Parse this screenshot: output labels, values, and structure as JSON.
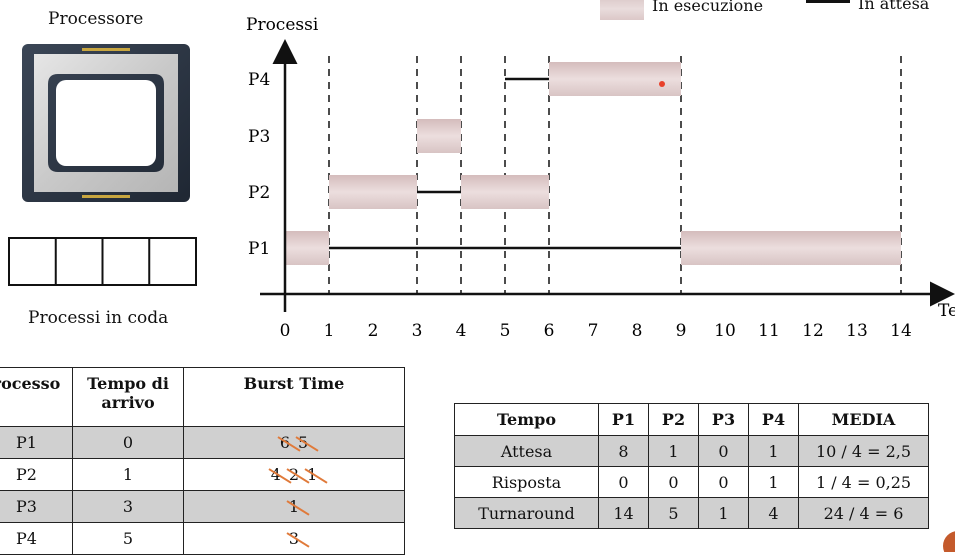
{
  "cpu": {
    "title": "Processore",
    "queue_caption": "Processi in coda",
    "queue_slots": 4
  },
  "legend": {
    "running": "In esecuzione",
    "waiting": "In attesa"
  },
  "gantt": {
    "y_label": "Processi",
    "x_label_partial": "Te",
    "x_ticks": [
      "0",
      "1",
      "2",
      "3",
      "4",
      "5",
      "6",
      "7",
      "8",
      "9",
      "10",
      "11",
      "12",
      "13",
      "14"
    ],
    "dashed_at": [
      1,
      3,
      4,
      5,
      6,
      9,
      14
    ],
    "rows": [
      "P1",
      "P2",
      "P3",
      "P4"
    ],
    "running": [
      {
        "p": "P1",
        "start": 0,
        "end": 1
      },
      {
        "p": "P2",
        "start": 1,
        "end": 3
      },
      {
        "p": "P3",
        "start": 3,
        "end": 4
      },
      {
        "p": "P2",
        "start": 4,
        "end": 6
      },
      {
        "p": "P4",
        "start": 6,
        "end": 9
      },
      {
        "p": "P1",
        "start": 9,
        "end": 14
      }
    ],
    "waiting": [
      {
        "p": "P1",
        "start": 1,
        "end": 9
      },
      {
        "p": "P2",
        "start": 3,
        "end": 4
      },
      {
        "p": "P4",
        "start": 5,
        "end": 6
      }
    ]
  },
  "arrival_table": {
    "headers": [
      "rocesso",
      "Tempo di arrivo",
      "Burst Time"
    ],
    "rows": [
      {
        "p": "P1",
        "arrival": "0",
        "burst": [
          "6",
          "5"
        ]
      },
      {
        "p": "P2",
        "arrival": "1",
        "burst": [
          "4",
          "2",
          "1"
        ]
      },
      {
        "p": "P3",
        "arrival": "3",
        "burst": [
          "1"
        ]
      },
      {
        "p": "P4",
        "arrival": "5",
        "burst": [
          "3"
        ]
      }
    ]
  },
  "stats_table": {
    "headers": [
      "Tempo",
      "P1",
      "P2",
      "P3",
      "P4",
      "MEDIA"
    ],
    "rows": [
      [
        "Attesa",
        "8",
        "1",
        "0",
        "1",
        "10 / 4 = 2,5"
      ],
      [
        "Risposta",
        "0",
        "0",
        "0",
        "1",
        "1 / 4 = 0,25"
      ],
      [
        "Turnaround",
        "14",
        "5",
        "1",
        "4",
        "24 / 4 = 6"
      ]
    ]
  },
  "colors": {
    "bar_top": "#d4bcbc",
    "bar_mid": "#ecdede",
    "shade": "#d0d0d0",
    "strike": "#e07a3a"
  }
}
